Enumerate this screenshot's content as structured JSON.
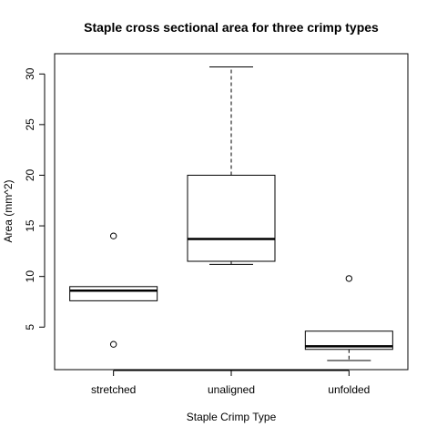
{
  "chart_data": {
    "type": "boxplot",
    "title": "Staple cross sectional area for three crimp types",
    "xlabel": "Staple Crimp Type",
    "ylabel": "Area (mm^2)",
    "ylim": [
      0.8,
      32.0
    ],
    "yticks": [
      5,
      10,
      15,
      20,
      25,
      30
    ],
    "yticks_labels": [
      "5",
      "10",
      "15",
      "20",
      "25",
      "30"
    ],
    "categories": [
      "stretched",
      "unaligned",
      "unfolded"
    ],
    "boxes": [
      {
        "category": "stretched",
        "whisker_low": 7.6,
        "q1": 7.6,
        "median": 8.6,
        "q3": 9.0,
        "whisker_high": 9.0,
        "outliers": [
          3.3,
          14.0
        ]
      },
      {
        "category": "unaligned",
        "whisker_low": 11.2,
        "q1": 11.5,
        "median": 13.7,
        "q3": 20.0,
        "whisker_high": 30.7,
        "outliers": []
      },
      {
        "category": "unfolded",
        "whisker_low": 1.7,
        "q1": 2.8,
        "median": 3.1,
        "q3": 4.6,
        "whisker_high": 4.6,
        "outliers": [
          9.8
        ]
      }
    ]
  }
}
